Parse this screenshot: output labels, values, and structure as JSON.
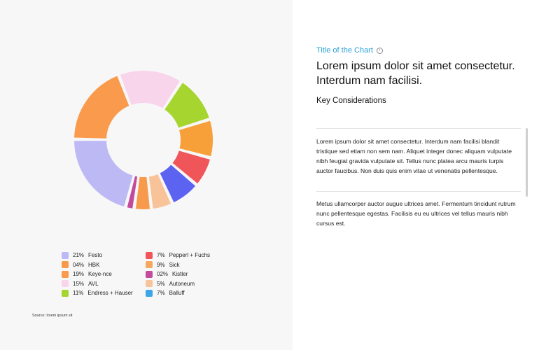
{
  "chart_data": {
    "type": "pie",
    "series": [
      {
        "label": "Festo",
        "pct_text": "21%",
        "value": 21,
        "color": "#bcb9f5"
      },
      {
        "label": "HBK",
        "pct_text": "04%",
        "value": 4,
        "color": "#f79a4c"
      },
      {
        "label": "Keye-nce",
        "pct_text": "19%",
        "value": 19,
        "color": "#f99a4c"
      },
      {
        "label": "AVL",
        "pct_text": "15%",
        "value": 15,
        "color": "#f9d5ec"
      },
      {
        "label": "Endress + Hauser",
        "pct_text": "11%",
        "value": 11,
        "color": "#a6d52f"
      },
      {
        "label": "Pepperl + Fuchs",
        "pct_text": "7%",
        "value": 7,
        "color": "#f0555a"
      },
      {
        "label": "Sick",
        "pct_text": "9%",
        "value": 9,
        "color": "#f7a860"
      },
      {
        "label": "Kistler",
        "pct_text": "02%",
        "value": 2,
        "color": "#c44a9e"
      },
      {
        "label": "Autoneum",
        "pct_text": "5%",
        "value": 5,
        "color": "#f9c39a"
      },
      {
        "label": "Balluff",
        "pct_text": "7%",
        "value": 7,
        "color": "#3ea6e6"
      }
    ],
    "drawing_order": [
      "Festo",
      "Keye-nce",
      "AVL",
      "Endress + Hauser",
      "Sick",
      "Pepperl + Fuchs",
      "Balluff",
      "Autoneum",
      "HBK",
      "Kistler"
    ],
    "ring_colors": {
      "Balluff": "#5b63f0",
      "Keye-nce": "#f99a4c",
      "Sick": "#f7a03a"
    }
  },
  "source": "Source: lorem ipsum sit",
  "right": {
    "chart_title": "Title of the Chart",
    "info_icon": "i",
    "headline": "Lorem ipsum dolor sit amet consectetur. Interdum nam facilisi.",
    "key_considerations": "Key Considerations",
    "para1": "Lorem ipsum dolor sit amet consectetur. Interdum nam facilisi blandit tristique sed etiam non sem nam. Aliquet integer donec aliquam vulputate nibh feugiat gravida vulputate sit. Tellus nunc platea arcu mauris turpis auctor faucibus. Non duis quis enim vitae ut venenatis pellentesque.",
    "para2": "Metus ullamcorper auctor augue ultrices amet. Fermentum tincidunt rutrum nunc pellentesque egestas. Facilisis eu eu ultrices vel tellus mauris nibh cursus est."
  }
}
